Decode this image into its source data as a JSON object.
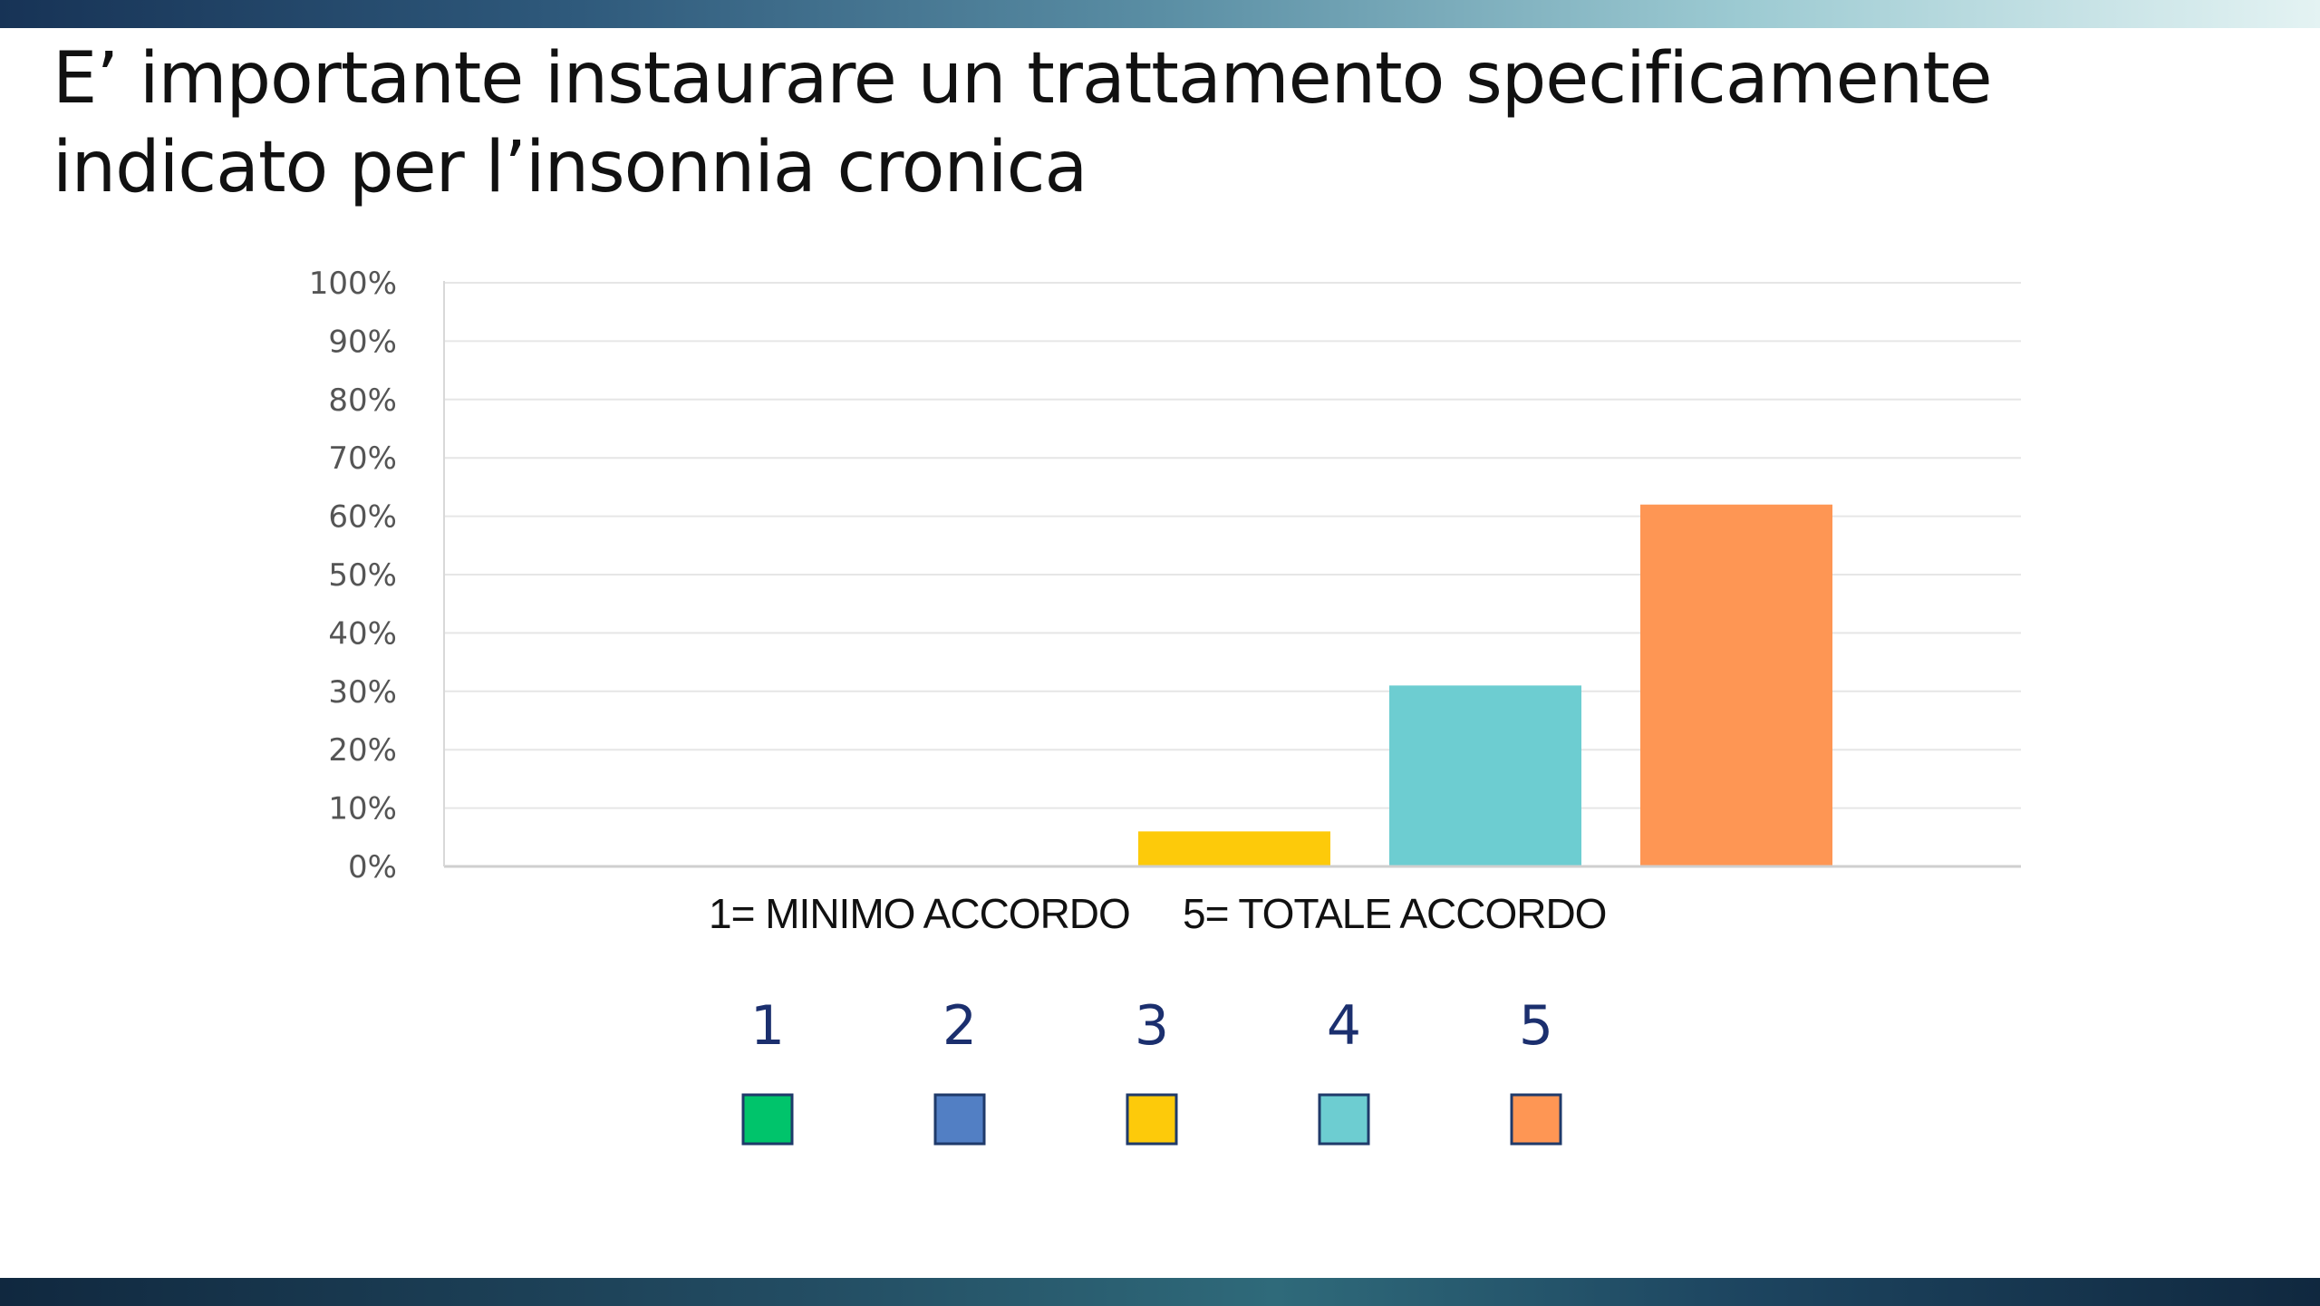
{
  "slide": {
    "title": "E’ importante instaurare un trattamento specificamente indicato per l’insonnia cronica"
  },
  "chart_data": {
    "type": "bar",
    "categories": [
      "1",
      "2",
      "3",
      "4",
      "5"
    ],
    "values": [
      0,
      0,
      6,
      31,
      62
    ],
    "unit": "%",
    "ylim": [
      0,
      100
    ],
    "y_ticks": [
      "0%",
      "10%",
      "20%",
      "30%",
      "40%",
      "50%",
      "60%",
      "70%",
      "80%",
      "90%",
      "100%"
    ],
    "colors": [
      "#00c46b",
      "#527fc4",
      "#fdca0a",
      "#6dcdd1",
      "#fe9654"
    ],
    "grid": true,
    "scale_note_min": "1= MINIMO ACCORDO",
    "scale_note_max": "5= TOTALE ACCORDO",
    "legend": {
      "position": "bottom",
      "entries": [
        {
          "label": "1",
          "color": "#00c46b"
        },
        {
          "label": "2",
          "color": "#527fc4"
        },
        {
          "label": "3",
          "color": "#fdca0a"
        },
        {
          "label": "4",
          "color": "#6dcdd1"
        },
        {
          "label": "5",
          "color": "#fe9654"
        }
      ]
    }
  }
}
